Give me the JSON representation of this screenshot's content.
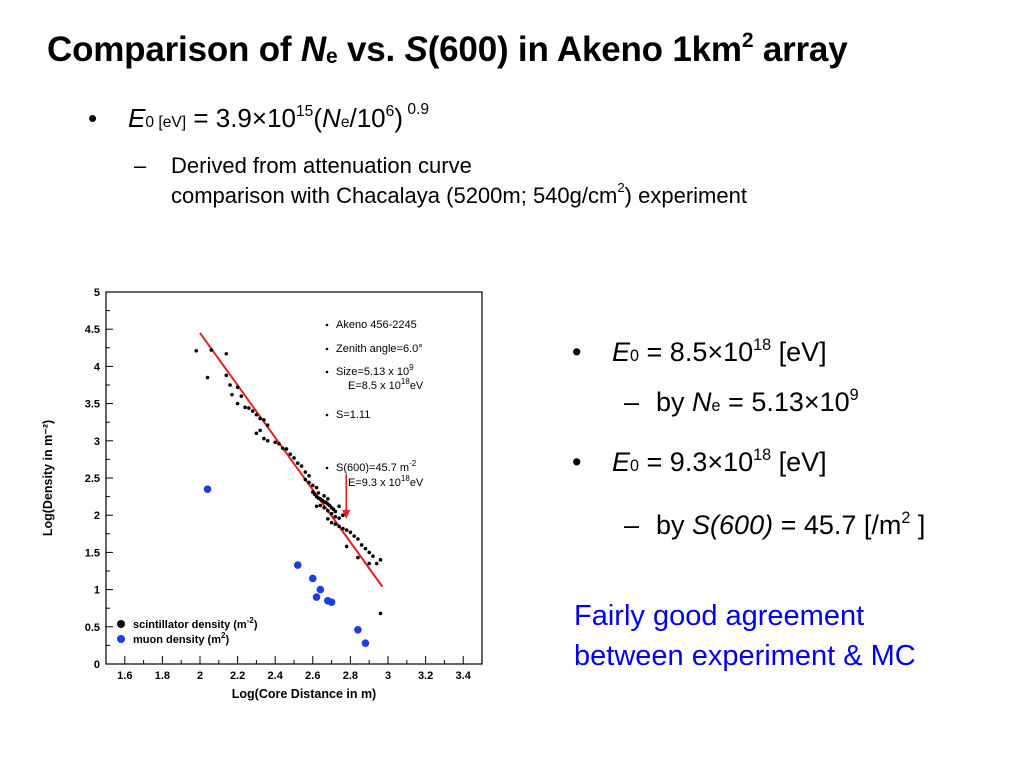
{
  "slide": {
    "title": {
      "prefix": "Comparison of ",
      "n": "N",
      "e": "e",
      "vs": " vs. ",
      "s": "S",
      "rest": "(600) in Akeno 1km",
      "sq": "2",
      "end": " array"
    },
    "bullet1": {
      "e": "E",
      "zero": "0",
      "unit": " [eV]",
      "eq": " = 3.9×10",
      "exp15": "15",
      "paren": "(",
      "n": "N",
      "e2": "e",
      "div": "/10",
      "exp6": "6",
      "close": ")",
      "exp09": " 0.9"
    },
    "sub1": {
      "line1": "Derived from attenuation curve",
      "line2a": "comparison with Chacalaya (5200m; 540g/cm",
      "sq": "2",
      "line2b": ") experiment"
    },
    "right": {
      "r1_e": "E",
      "r1_zero": "0",
      "r1_eq": " = 8.5×10",
      "r1_exp": "18",
      "r1_unit": " [eV]",
      "r2_by": "by ",
      "r2_n": "N",
      "r2_e": "e",
      "r2_eq": " = 5.13×10",
      "r2_exp": "9",
      "r3_e": "E",
      "r3_zero": "0",
      "r3_eq": " = 9.3×10",
      "r3_exp": "18",
      "r3_unit": " [eV]",
      "r4_by": "by ",
      "r4_s": "S(600)",
      "r4_eq": " = 45.7 [/m",
      "r4_sq": "2",
      "r4_end": " ]"
    },
    "note": {
      "line1": "Fairly good agreement",
      "line2": "between experiment & MC"
    }
  },
  "bullets": {
    "dot": "•",
    "dash": "–"
  },
  "colors": {
    "scintillator": "#000000",
    "muon": "#1a3fe0",
    "fit": "#e62020",
    "note": "#0000ee"
  },
  "chart_data": {
    "type": "scatter",
    "xlabel": "Log(Core Distance in m)",
    "ylabel": "Log(Density in m⁻²)",
    "xlim": [
      1.5,
      3.5
    ],
    "ylim": [
      0,
      5
    ],
    "xticks": [
      "1.6",
      "1.8",
      "2",
      "2.2",
      "2.4",
      "2.6",
      "2.8",
      "3",
      "3.2",
      "3.4"
    ],
    "yticks": [
      "0",
      "0.5",
      "1",
      "1.5",
      "2",
      "2.5",
      "3",
      "3.5",
      "4",
      "4.5",
      "5"
    ],
    "annotations": {
      "event": "Akeno 456-2245",
      "zenith": "Zenith angle=6.0°",
      "size_a": "Size=5.13 x 10",
      "size_exp": "9",
      "energy1_a": "E=8.5 x 10",
      "energy1_exp": "18",
      "energy1_b": "eV",
      "s": "S=1.11",
      "s600_a": "S(600)=45.7 m",
      "s600_exp": "-2",
      "energy2_a": "E=9.3 x 10",
      "energy2_exp": "18",
      "energy2_b": "eV"
    },
    "legend": [
      {
        "name": "scintillator density (m",
        "exp": "-2",
        "end": ")"
      },
      {
        "name": "muon density (m",
        "exp": "2",
        "end": ")"
      }
    ],
    "fit_line": {
      "x": [
        2.0,
        2.97
      ],
      "y": [
        4.45,
        1.04
      ]
    },
    "s600_marker": {
      "x": 2.778,
      "y_from": 2.55,
      "y_to": 1.95
    },
    "series": [
      {
        "name": "scintillator density (m-2)",
        "points": [
          [
            1.98,
            4.21
          ],
          [
            2.06,
            4.22
          ],
          [
            2.14,
            4.17
          ],
          [
            2.04,
            3.85
          ],
          [
            2.14,
            3.88
          ],
          [
            2.16,
            3.75
          ],
          [
            2.2,
            3.72
          ],
          [
            2.17,
            3.62
          ],
          [
            2.22,
            3.6
          ],
          [
            2.2,
            3.5
          ],
          [
            2.24,
            3.45
          ],
          [
            2.26,
            3.44
          ],
          [
            2.28,
            3.4
          ],
          [
            2.3,
            3.35
          ],
          [
            2.32,
            3.3
          ],
          [
            2.34,
            3.28
          ],
          [
            2.36,
            3.21
          ],
          [
            2.32,
            3.14
          ],
          [
            2.3,
            3.1
          ],
          [
            2.34,
            3.03
          ],
          [
            2.36,
            3.0
          ],
          [
            2.4,
            2.98
          ],
          [
            2.42,
            2.96
          ],
          [
            2.44,
            2.9
          ],
          [
            2.46,
            2.89
          ],
          [
            2.48,
            2.82
          ],
          [
            2.5,
            2.77
          ],
          [
            2.52,
            2.7
          ],
          [
            2.54,
            2.66
          ],
          [
            2.56,
            2.58
          ],
          [
            2.58,
            2.53
          ],
          [
            2.56,
            2.48
          ],
          [
            2.58,
            2.44
          ],
          [
            2.6,
            2.4
          ],
          [
            2.62,
            2.37
          ],
          [
            2.6,
            2.31
          ],
          [
            2.61,
            2.28
          ],
          [
            2.62,
            2.25
          ],
          [
            2.63,
            2.23
          ],
          [
            2.64,
            2.22
          ],
          [
            2.65,
            2.2
          ],
          [
            2.66,
            2.18
          ],
          [
            2.67,
            2.17
          ],
          [
            2.68,
            2.15
          ],
          [
            2.69,
            2.13
          ],
          [
            2.7,
            2.1
          ],
          [
            2.71,
            2.08
          ],
          [
            2.72,
            2.05
          ],
          [
            2.62,
            2.12
          ],
          [
            2.64,
            2.13
          ],
          [
            2.66,
            2.1
          ],
          [
            2.68,
            2.06
          ],
          [
            2.7,
            2.02
          ],
          [
            2.72,
            1.98
          ],
          [
            2.74,
            1.96
          ],
          [
            2.68,
            1.95
          ],
          [
            2.7,
            1.9
          ],
          [
            2.72,
            1.88
          ],
          [
            2.74,
            1.85
          ],
          [
            2.76,
            1.82
          ],
          [
            2.78,
            1.8
          ],
          [
            2.8,
            1.77
          ],
          [
            2.82,
            1.72
          ],
          [
            2.84,
            1.68
          ],
          [
            2.86,
            1.6
          ],
          [
            2.88,
            1.55
          ],
          [
            2.9,
            1.5
          ],
          [
            2.92,
            1.45
          ],
          [
            2.94,
            1.35
          ],
          [
            2.78,
            1.58
          ],
          [
            2.84,
            1.43
          ],
          [
            2.9,
            1.35
          ],
          [
            2.96,
            1.4
          ],
          [
            2.96,
            0.68
          ],
          [
            2.66,
            2.26
          ],
          [
            2.68,
            2.22
          ],
          [
            2.63,
            2.3
          ],
          [
            2.74,
            2.12
          ],
          [
            2.76,
            2.0
          ]
        ]
      },
      {
        "name": "muon density (m2)",
        "points": [
          [
            2.04,
            2.35
          ],
          [
            2.52,
            1.33
          ],
          [
            2.6,
            1.15
          ],
          [
            2.64,
            1.0
          ],
          [
            2.62,
            0.9
          ],
          [
            2.68,
            0.85
          ],
          [
            2.7,
            0.83
          ],
          [
            2.84,
            0.46
          ],
          [
            2.88,
            0.28
          ]
        ]
      }
    ]
  }
}
